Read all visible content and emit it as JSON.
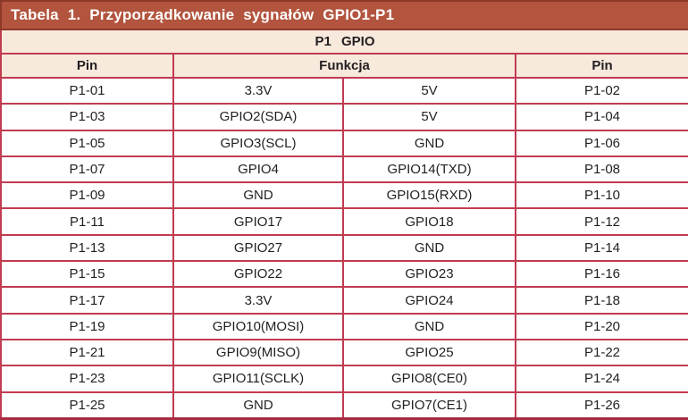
{
  "title": "Tabela 1. Przyporządkowanie sygnałów GPIO1-P1",
  "table": {
    "group_header": "P1 GPIO",
    "columns": [
      "Pin",
      "Funkcja",
      "Pin"
    ],
    "rows": [
      [
        "P1-01",
        "3.3V",
        "5V",
        "P1-02"
      ],
      [
        "P1-03",
        "GPIO2(SDA)",
        "5V",
        "P1-04"
      ],
      [
        "P1-05",
        "GPIO3(SCL)",
        "GND",
        "P1-06"
      ],
      [
        "P1-07",
        "GPIO4",
        "GPIO14(TXD)",
        "P1-08"
      ],
      [
        "P1-09",
        "GND",
        "GPIO15(RXD)",
        "P1-10"
      ],
      [
        "P1-11",
        "GPIO17",
        "GPIO18",
        "P1-12"
      ],
      [
        "P1-13",
        "GPIO27",
        "GND",
        "P1-14"
      ],
      [
        "P1-15",
        "GPIO22",
        "GPIO23",
        "P1-16"
      ],
      [
        "P1-17",
        "3.3V",
        "GPIO24",
        "P1-18"
      ],
      [
        "P1-19",
        "GPIO10(MOSI)",
        "GND",
        "P1-20"
      ],
      [
        "P1-21",
        "GPIO9(MISO)",
        "GPIO25",
        "P1-22"
      ],
      [
        "P1-23",
        "GPIO11(SCLK)",
        "GPIO8(CE0)",
        "P1-24"
      ],
      [
        "P1-25",
        "GND",
        "GPIO7(CE1)",
        "P1-26"
      ]
    ]
  },
  "colors": {
    "title_bg": "#b2543e",
    "title_border": "#8e3a28",
    "title_text": "#ffffff",
    "header_bg": "#f8e9dd",
    "border": "#c13b51",
    "border_bottom": "#a62c40",
    "row_bg": "#ffffff",
    "text": "#231f20"
  }
}
